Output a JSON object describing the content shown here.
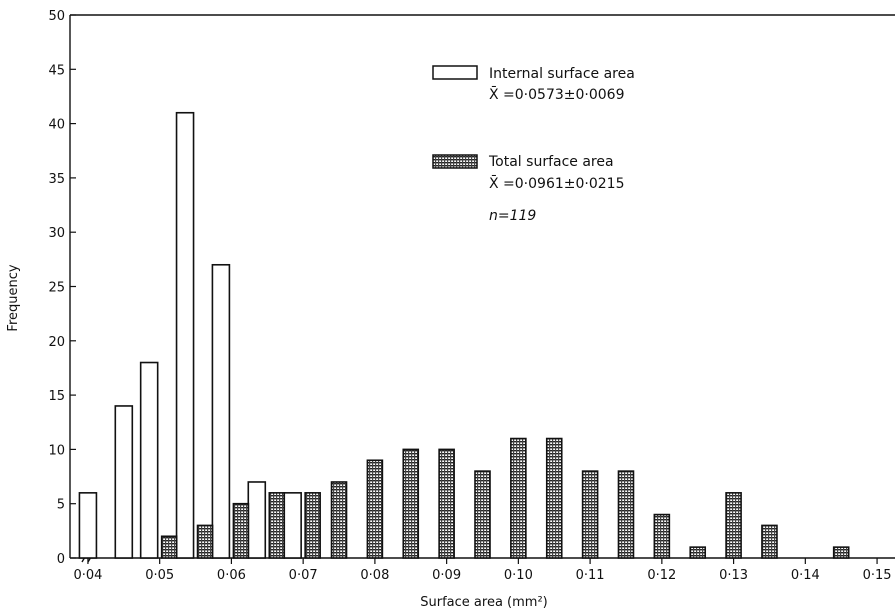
{
  "chart_data": {
    "type": "bar",
    "xlabel": "Surface area (mm²)",
    "ylabel": "Frequency",
    "xlim": [
      0.0375,
      0.1525
    ],
    "ylim": [
      0,
      50
    ],
    "y_ticks": [
      "0",
      "5",
      "10",
      "15",
      "20",
      "25",
      "30",
      "35",
      "40",
      "45",
      "50"
    ],
    "x_ticks": [
      {
        "value": 0.04,
        "label": "0·04"
      },
      {
        "value": 0.05,
        "label": "0·05"
      },
      {
        "value": 0.06,
        "label": "0·06"
      },
      {
        "value": 0.07,
        "label": "0·07"
      },
      {
        "value": 0.08,
        "label": "0·08"
      },
      {
        "value": 0.09,
        "label": "0·09"
      },
      {
        "value": 0.1,
        "label": "0·10"
      },
      {
        "value": 0.11,
        "label": "0·11"
      },
      {
        "value": 0.12,
        "label": "0·12"
      },
      {
        "value": 0.13,
        "label": "0·13"
      },
      {
        "value": 0.14,
        "label": "0·14"
      },
      {
        "value": 0.15,
        "label": "0·15"
      }
    ],
    "grid": false,
    "legend_position": "top-right",
    "series": [
      {
        "name": "Internal surface area",
        "stat": "X̄ =0·0573±0·0069",
        "fill": "white",
        "x": [
          0.04,
          0.045,
          0.05,
          0.055,
          0.06,
          0.065,
          0.07
        ],
        "values": [
          6,
          14,
          18,
          41,
          27,
          7,
          6
        ]
      },
      {
        "name": "Total surface area",
        "stat": "X̄ =0·0961±0·0215",
        "fill": "hatched",
        "x": [
          0.05,
          0.055,
          0.06,
          0.065,
          0.07,
          0.075,
          0.08,
          0.085,
          0.09,
          0.095,
          0.1,
          0.105,
          0.11,
          0.115,
          0.12,
          0.125,
          0.13,
          0.135,
          0.14,
          0.145
        ],
        "values": [
          2,
          3,
          5,
          6,
          6,
          7,
          9,
          10,
          10,
          8,
          11,
          11,
          8,
          8,
          4,
          1,
          6,
          3,
          0,
          1
        ]
      }
    ],
    "annotation": "n=119"
  }
}
